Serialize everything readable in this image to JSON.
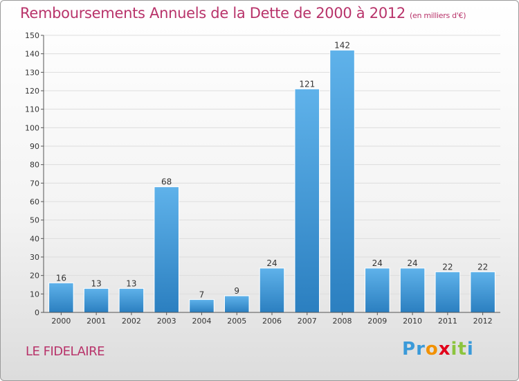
{
  "title": "Remboursements Annuels de la Dette de 2000 à 2012",
  "unit": "(en milliers d'€)",
  "commune": "LE FIDELAIRE",
  "logo": {
    "letters": [
      "P",
      "r",
      "o",
      "x",
      "i",
      "t",
      "i"
    ],
    "colors": [
      "#3a9ad9",
      "#3a9ad9",
      "#f29100",
      "#e2001a",
      "#8cc43e",
      "#8cc43e",
      "#3a9ad9"
    ]
  },
  "colors": {
    "bar": "#3d95d6",
    "bar_light": "#5aaee8",
    "title": "#b8336a",
    "grid": "#dddddd"
  },
  "chart_data": {
    "type": "bar",
    "categories": [
      "2000",
      "2001",
      "2002",
      "2003",
      "2004",
      "2005",
      "2006",
      "2007",
      "2008",
      "2009",
      "2010",
      "2011",
      "2012"
    ],
    "values": [
      16,
      13,
      13,
      68,
      7,
      9,
      24,
      121,
      142,
      24,
      24,
      22,
      22
    ],
    "ylim": [
      0,
      150
    ],
    "yticks": [
      0,
      10,
      20,
      30,
      40,
      50,
      60,
      70,
      80,
      90,
      100,
      110,
      120,
      130,
      140,
      150
    ],
    "grid": true,
    "xlabel": "",
    "ylabel": ""
  }
}
